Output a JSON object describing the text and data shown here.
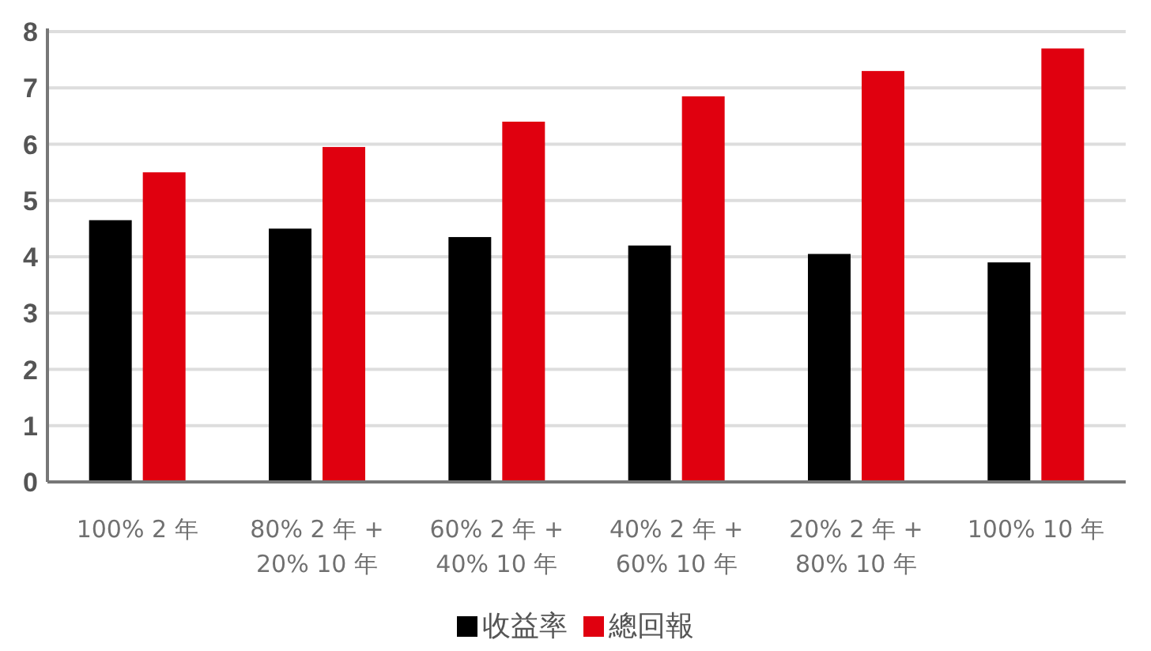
{
  "chart_data": {
    "type": "bar",
    "categories": [
      "100% 2 年",
      "80% 2 年 + 20% 10 年",
      "60% 2 年 + 40% 10 年",
      "40% 2 年 + 60% 10 年",
      "20% 2 年 + 80% 10 年",
      "100% 10 年"
    ],
    "series": [
      {
        "name": "收益率",
        "color": "#000000",
        "values": [
          4.65,
          4.5,
          4.35,
          4.2,
          4.05,
          3.9
        ]
      },
      {
        "name": "總回報",
        "color": "#e0000f",
        "values": [
          5.5,
          5.95,
          6.4,
          6.85,
          7.3,
          7.7
        ]
      }
    ],
    "ylim": [
      0,
      8
    ],
    "yticks": [
      0,
      1,
      2,
      3,
      4,
      5,
      6,
      7,
      8
    ],
    "grid": "y",
    "legend": "bottom"
  }
}
